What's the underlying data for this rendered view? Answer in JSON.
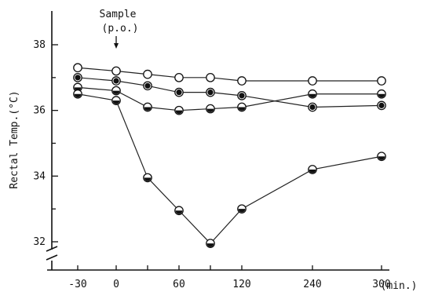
{
  "chart_data": {
    "type": "line",
    "title": "",
    "xlabel": "",
    "ylabel": "Rectal Temp.(°C)",
    "x_unit_label": "(min.)",
    "x": [
      -30,
      0,
      30,
      60,
      90,
      120,
      240,
      300
    ],
    "x_tick_labels": [
      "-30",
      "0",
      "60",
      "120",
      "240",
      "300"
    ],
    "y_tick_labels": [
      "32",
      "34",
      "36",
      "38"
    ],
    "ylim": [
      31.6,
      38.4
    ],
    "y_axis_break": true,
    "grid": false,
    "annotation": {
      "line1": "Sample",
      "line2": "(p.o.)",
      "arrow_at_x": 0
    },
    "series": [
      {
        "marker": "open-circle",
        "values": [
          37.3,
          37.2,
          37.1,
          37.0,
          37.0,
          36.9,
          36.9,
          36.9
        ]
      },
      {
        "marker": "filled-circle",
        "values": [
          37.0,
          36.9,
          36.75,
          36.55,
          36.55,
          36.45,
          36.1,
          36.15
        ]
      },
      {
        "marker": "half-filled-circle",
        "values": [
          36.7,
          36.6,
          36.1,
          36.0,
          36.05,
          36.1,
          36.5,
          36.5
        ]
      },
      {
        "marker": "half-filled-circle",
        "values": [
          36.5,
          36.3,
          33.95,
          32.95,
          31.95,
          33.0,
          34.2,
          34.6
        ]
      }
    ]
  }
}
